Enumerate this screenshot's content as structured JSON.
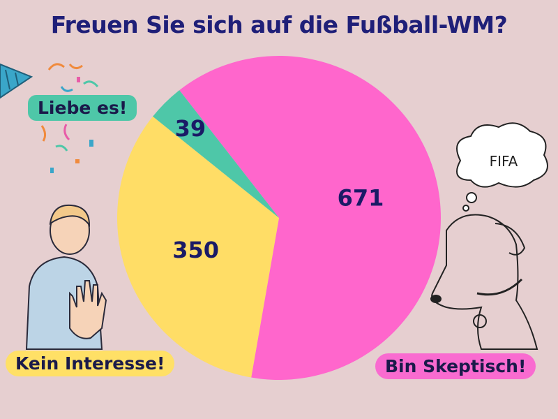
{
  "title": "Freuen Sie sich auf die Fußball-WM?",
  "chart_data": {
    "type": "pie",
    "title": "Freuen Sie sich auf die Fußball-WM?",
    "slices": [
      {
        "label": "Bin Skeptisch!",
        "value": 671,
        "color": "#ff66cc"
      },
      {
        "label": "Kein Interesse!",
        "value": 350,
        "color": "#ffdd66"
      },
      {
        "label": "Liebe es!",
        "value": 39,
        "color": "#4ec7a8"
      }
    ]
  },
  "labels": {
    "love": "Liebe es!",
    "no_interest": "Kein Interesse!",
    "skeptic": "Bin Skeptisch!"
  },
  "thought_bubble_text": "FIFA",
  "colors": {
    "background": "#e6cfd0",
    "title": "#1f1f78",
    "value_text": "#1a1a66"
  }
}
